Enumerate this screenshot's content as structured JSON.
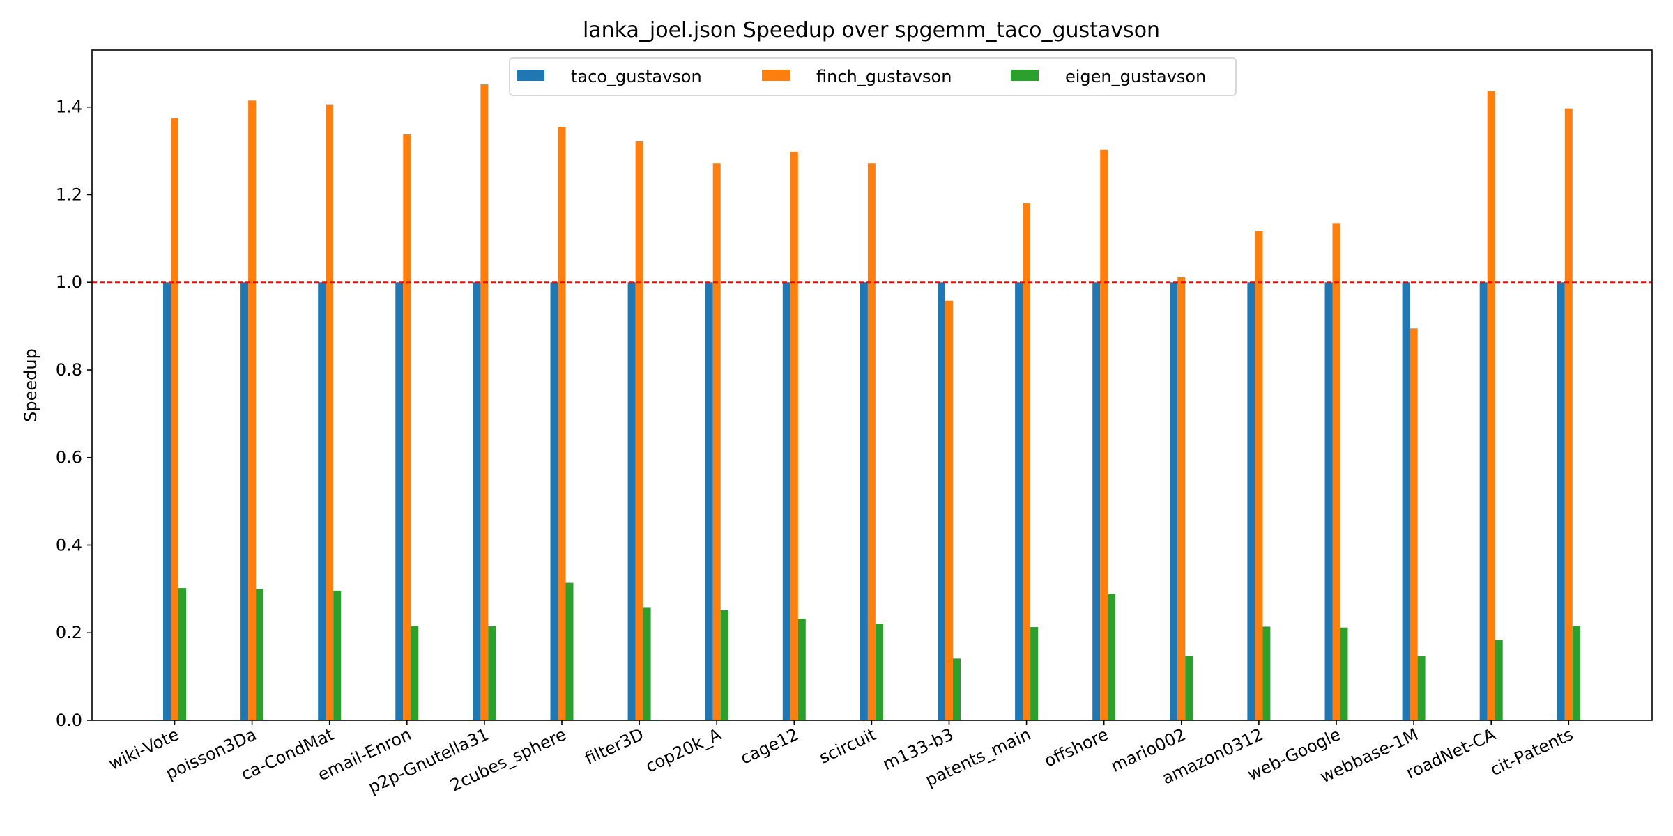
{
  "chart_data": {
    "type": "bar",
    "title": "lanka_joel.json Speedup over spgemm_taco_gustavson",
    "xlabel": "",
    "ylabel": "Speedup",
    "ylim": [
      0,
      1.53
    ],
    "yticks": [
      0.0,
      0.2,
      0.4,
      0.6,
      0.8,
      1.0,
      1.2,
      1.4
    ],
    "categories": [
      "wiki-Vote",
      "poisson3Da",
      "ca-CondMat",
      "email-Enron",
      "p2p-Gnutella31",
      "2cubes_sphere",
      "filter3D",
      "cop20k_A",
      "cage12",
      "scircuit",
      "m133-b3",
      "patents_main",
      "offshore",
      "mario002",
      "amazon0312",
      "web-Google",
      "webbase-1M",
      "roadNet-CA",
      "cit-Patents"
    ],
    "series": [
      {
        "name": "taco_gustavson",
        "color": "#1f77b4",
        "values": [
          1.0,
          1.0,
          1.0,
          1.0,
          1.0,
          1.0,
          1.0,
          1.0,
          1.0,
          1.0,
          1.0,
          1.0,
          1.0,
          1.0,
          1.0,
          1.0,
          1.0,
          1.0,
          1.0
        ]
      },
      {
        "name": "finch_gustavson",
        "color": "#ff7f0e",
        "values": [
          1.375,
          1.415,
          1.405,
          1.338,
          1.452,
          1.355,
          1.322,
          1.272,
          1.298,
          1.272,
          0.958,
          1.18,
          1.303,
          1.012,
          1.118,
          1.135,
          0.895,
          1.437,
          1.397
        ]
      },
      {
        "name": "eigen_gustavson",
        "color": "#2ca02c",
        "values": [
          0.302,
          0.3,
          0.296,
          0.216,
          0.215,
          0.314,
          0.257,
          0.252,
          0.232,
          0.221,
          0.141,
          0.213,
          0.289,
          0.147,
          0.214,
          0.212,
          0.147,
          0.184,
          0.216
        ]
      }
    ],
    "reference_line": {
      "value": 1.0,
      "color": "#ff0000",
      "style": "dashed"
    },
    "legend": {
      "placement": "upper center",
      "columns": 3
    },
    "grid": false
  }
}
